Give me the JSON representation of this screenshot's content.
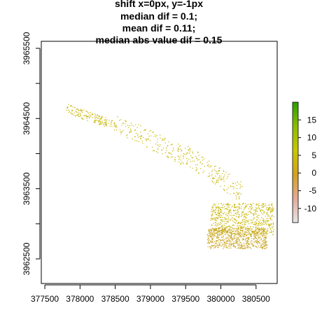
{
  "chart_data": {
    "type": "scatter",
    "title_lines": [
      "shift x=0px, y=-1px",
      "median dif = 0.1;",
      "mean dif = 0.11;",
      "median abs value dif = 0.15"
    ],
    "xlabel": "",
    "ylabel": "",
    "xlim": [
      377450,
      380800
    ],
    "ylim": [
      3962150,
      3965600
    ],
    "x_ticks": [
      377500,
      378000,
      378500,
      379000,
      379500,
      380000,
      380500
    ],
    "x_tick_labels": [
      "377500",
      "378000",
      "378500",
      "379000",
      "379500",
      "380000",
      "380500"
    ],
    "y_ticks": [
      3962500,
      3963000,
      3963500,
      3964000,
      3964500,
      3965000,
      3965500
    ],
    "y_tick_labels": [
      "3962500",
      "",
      "3963500",
      "",
      "3964500",
      "",
      "3965500"
    ],
    "grid": false,
    "colorbar": {
      "range": [
        -14,
        20
      ],
      "ticks": [
        15,
        10,
        5,
        0,
        -5,
        -10
      ],
      "tick_labels": [
        "15",
        "10",
        "5",
        "0",
        "-5",
        "-10"
      ],
      "colors": [
        "#e6e6e6",
        "#e4aa96",
        "#d4a21c",
        "#c8c800",
        "#8cbc00",
        "#2aa000"
      ]
    },
    "point_color": "#c8b400",
    "point_color_alt": "#c8a31e",
    "clusters": [
      {
        "x": [
          377800,
          378500
        ],
        "y": [
          3964400,
          3964650
        ],
        "density": "sparse"
      },
      {
        "x": [
          378500,
          379500
        ],
        "y": [
          3963950,
          3964450
        ],
        "density": "sparse"
      },
      {
        "x": [
          379500,
          380300
        ],
        "y": [
          3963450,
          3964000
        ],
        "density": "sparse"
      },
      {
        "x": [
          379850,
          380750
        ],
        "y": [
          3962850,
          3963300
        ],
        "density": "dense"
      },
      {
        "x": [
          379800,
          380650
        ],
        "y": [
          3962650,
          3962950
        ],
        "density": "dense"
      }
    ]
  }
}
